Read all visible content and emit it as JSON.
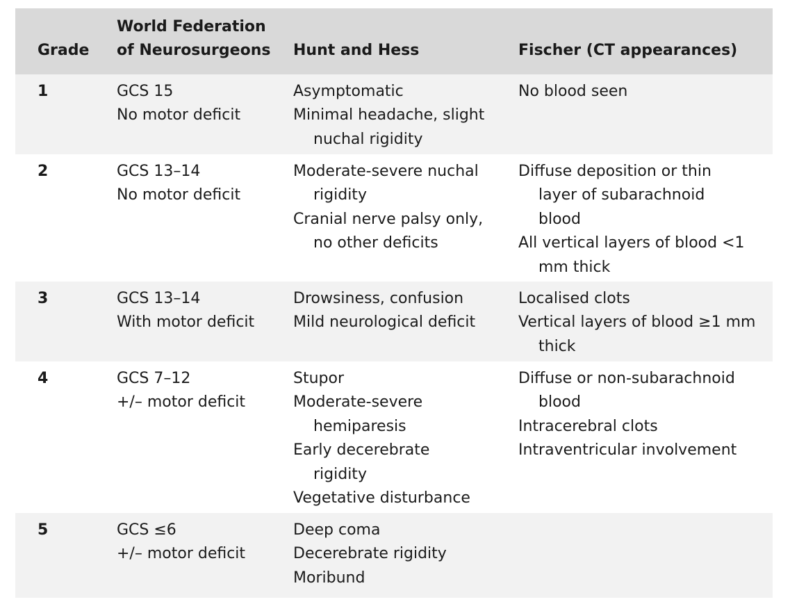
{
  "header": {
    "grade": "Grade",
    "wfns_line1": "World Federation",
    "wfns_line2": "of Neurosurgeons",
    "hunt_hess": "Hunt and Hess",
    "fischer": "Fischer (CT appearances)"
  },
  "rows": [
    {
      "grade": "1",
      "wfns": [
        "GCS 15",
        "No motor deficit"
      ],
      "hunt_hess": [
        "Asymptomatic",
        "Minimal headache, slight nuchal rigidity"
      ],
      "fischer": [
        "No blood seen"
      ]
    },
    {
      "grade": "2",
      "wfns": [
        "GCS 13–14",
        "No motor deficit"
      ],
      "hunt_hess": [
        "Moderate-severe nuchal rigidity",
        "Cranial nerve palsy only, no other deficits"
      ],
      "fischer": [
        "Diffuse deposition or thin layer of subarachnoid blood",
        "All vertical layers of blood <1 mm thick"
      ]
    },
    {
      "grade": "3",
      "wfns": [
        "GCS 13–14",
        "With motor deficit"
      ],
      "hunt_hess": [
        "Drowsiness, confusion",
        "Mild neurological deficit"
      ],
      "fischer": [
        "Localised clots",
        "Vertical layers of blood ≥1 mm thick"
      ]
    },
    {
      "grade": "4",
      "wfns": [
        "GCS 7–12",
        "+/– motor deficit"
      ],
      "hunt_hess": [
        "Stupor",
        "Moderate-severe hemiparesis",
        "Early decerebrate rigidity",
        "Vegetative disturbance"
      ],
      "fischer": [
        "Diffuse or non-subarachnoid blood",
        "Intracerebral clots",
        "Intraventricular involvement"
      ]
    },
    {
      "grade": "5",
      "wfns": [
        "GCS ≤6",
        "+/– motor deficit"
      ],
      "hunt_hess": [
        "Deep coma",
        "Decerebrate rigidity",
        "Moribund"
      ],
      "fischer": []
    }
  ]
}
